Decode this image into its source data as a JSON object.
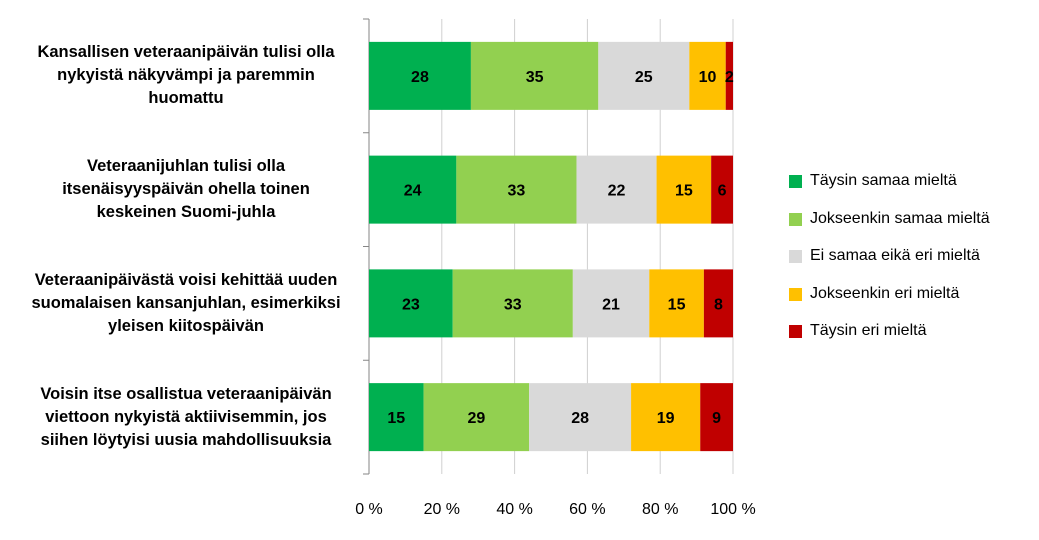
{
  "chart_data": {
    "type": "bar",
    "orientation": "horizontal",
    "stacked": "percent",
    "categories": [
      "Kansallisen veteraanipäivän tulisi olla nykyistä näkyvämpi ja paremmin huomattu",
      "Veteraanijuhlan tulisi olla itsenäisyyspäivän ohella toinen keskeinen Suomi-juhla",
      "Veteraanipäivästä voisi kehittää uuden suomalaisen kansanjuhlan, esimerkiksi yleisen kiitospäivän",
      "Voisin itse osallistua veteraanipäivän viettoon nykyistä aktiivisemmin, jos siihen löytyisi uusia mahdollisuuksia"
    ],
    "category_lines": [
      [
        "Kansallisen veteraanipäivän tulisi olla",
        "nykyistä näkyvämpi ja paremmin",
        "huomattu"
      ],
      [
        "Veteraanijuhlan tulisi olla",
        "itsenäisyyspäivän ohella toinen",
        "keskeinen Suomi-juhla"
      ],
      [
        "Veteraanipäivästä voisi kehittää uuden",
        "suomalaisen kansanjuhlan, esimerkiksi",
        "yleisen kiitospäivän"
      ],
      [
        "Voisin itse osallistua veteraanipäivän",
        "viettoon nykyistä aktiivisemmin, jos",
        "siihen löytyisi uusia mahdollisuuksia"
      ]
    ],
    "series": [
      {
        "name": "Täysin samaa mieltä",
        "color": "#00b050",
        "values": [
          28,
          24,
          23,
          15
        ]
      },
      {
        "name": "Jokseenkin samaa mieltä",
        "color": "#92d050",
        "values": [
          35,
          33,
          33,
          29
        ]
      },
      {
        "name": "Ei samaa eikä eri mieltä",
        "color": "#d9d9d9",
        "values": [
          25,
          22,
          21,
          28
        ]
      },
      {
        "name": "Jokseenkin eri mieltä",
        "color": "#ffc000",
        "values": [
          10,
          15,
          15,
          19
        ]
      },
      {
        "name": "Täysin eri mieltä",
        "color": "#c00000",
        "values": [
          2,
          6,
          8,
          9
        ]
      }
    ],
    "x_ticks": [
      "0 %",
      "20 %",
      "40 %",
      "60 %",
      "80 %",
      "100 %"
    ],
    "xlim": [
      0,
      100
    ],
    "legend_position": "right",
    "grid": "vertical"
  }
}
